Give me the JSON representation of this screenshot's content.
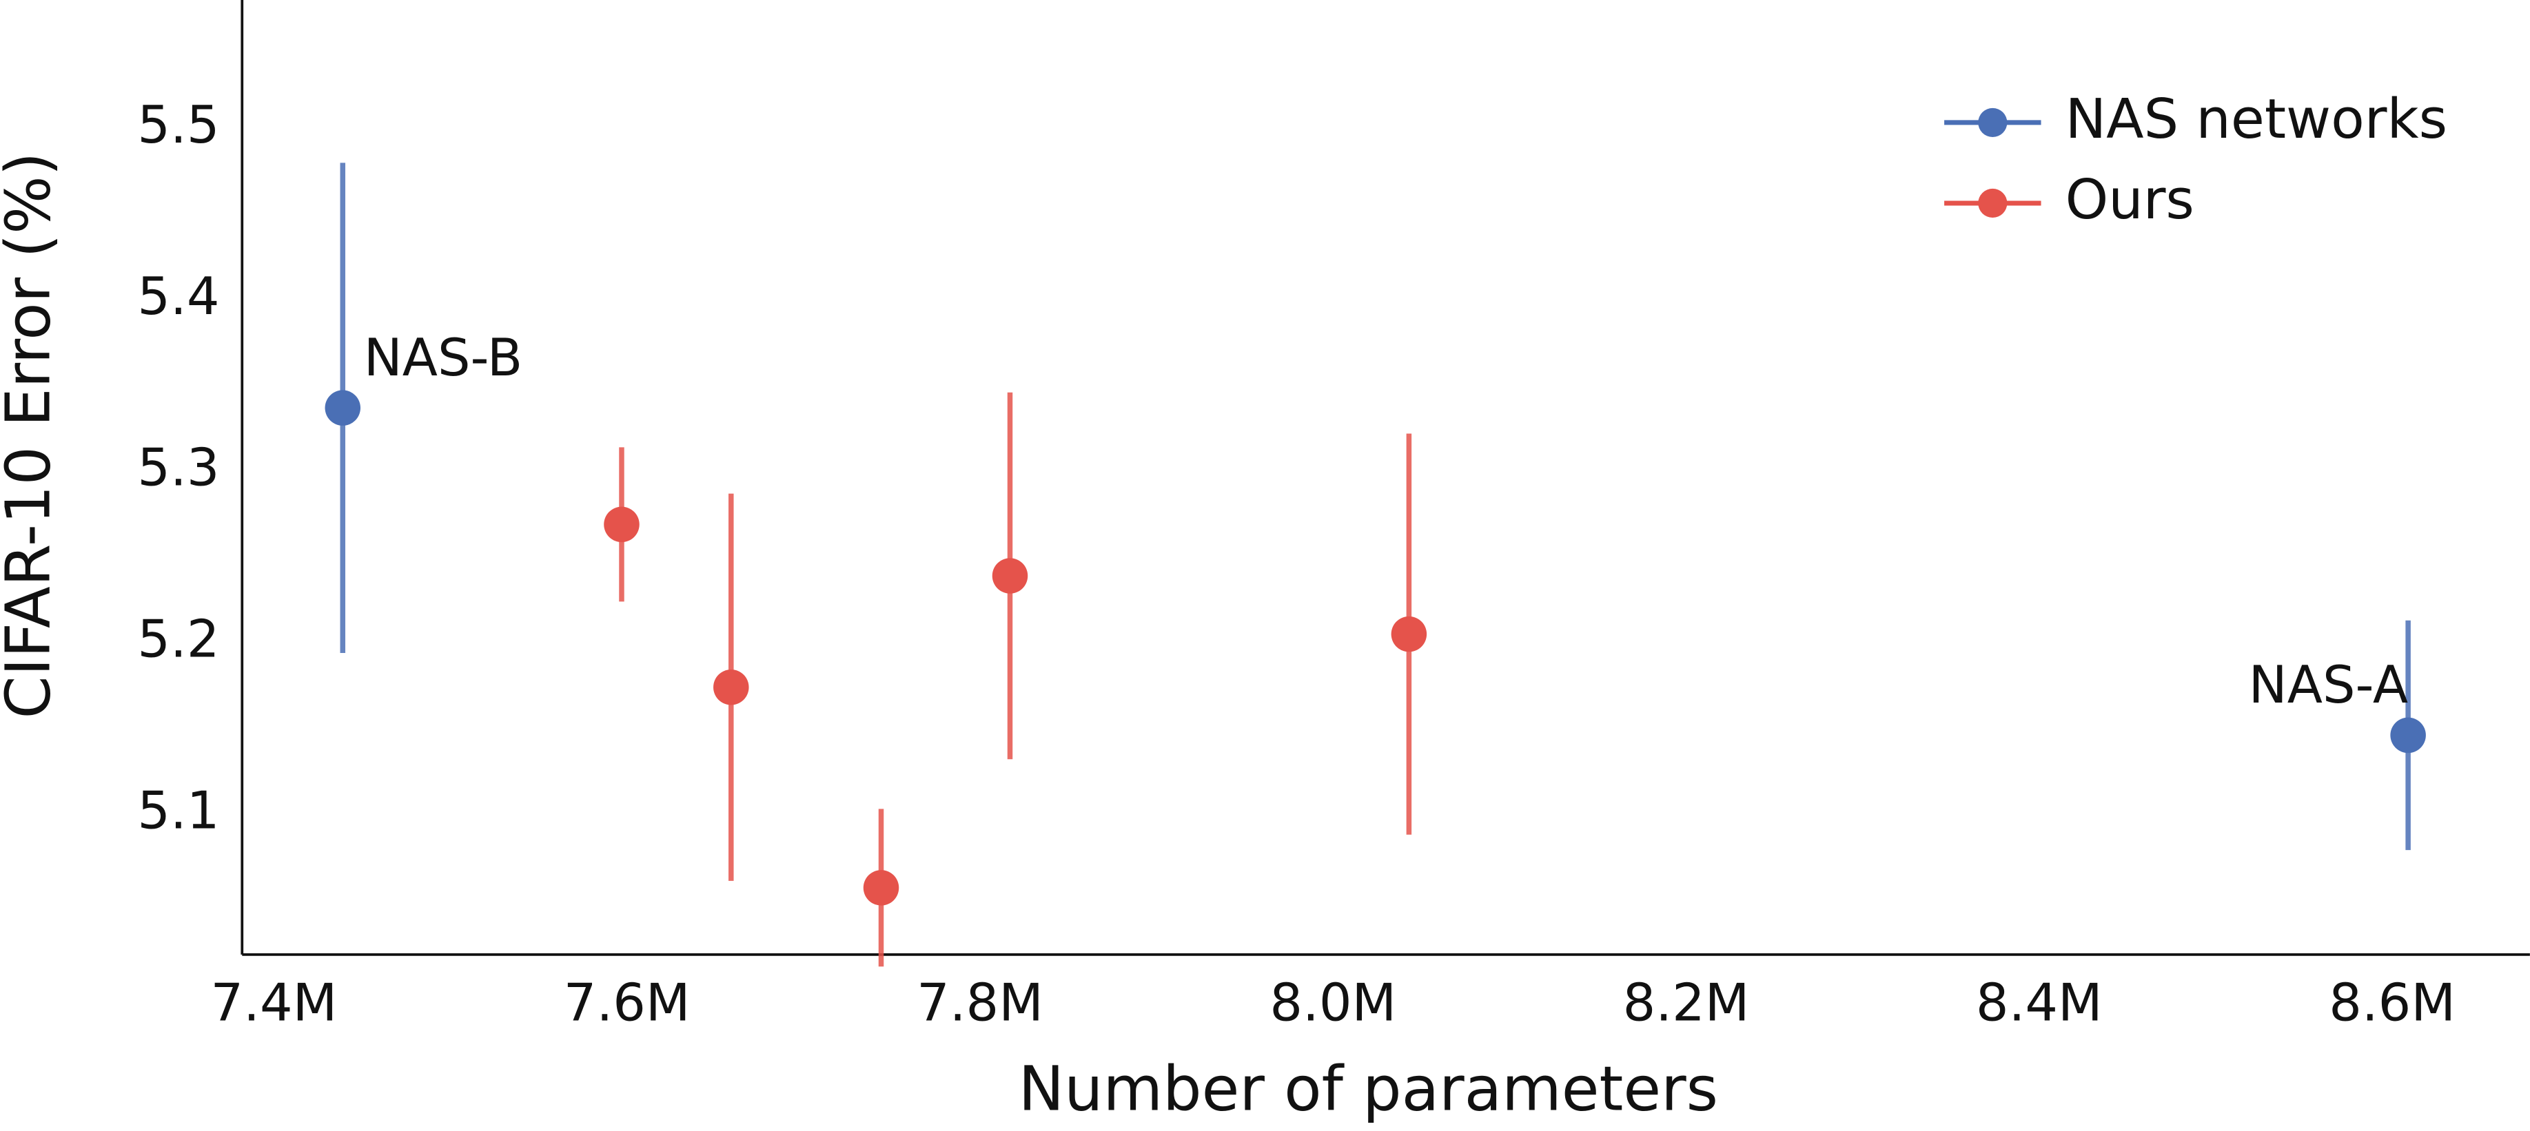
{
  "chart_data": {
    "type": "errorbar",
    "xlabel": "Number of parameters",
    "ylabel": "CIFAR-10 Error (%)",
    "xlim": [
      7.382,
      8.678
    ],
    "ylim": [
      5.018,
      5.575
    ],
    "xticks": [
      {
        "value": 7.4,
        "label": "7.4M"
      },
      {
        "value": 7.6,
        "label": "7.6M"
      },
      {
        "value": 7.8,
        "label": "7.8M"
      },
      {
        "value": 8.0,
        "label": "8.0M"
      },
      {
        "value": 8.2,
        "label": "8.2M"
      },
      {
        "value": 8.4,
        "label": "8.4M"
      },
      {
        "value": 8.6,
        "label": "8.6M"
      }
    ],
    "yticks": [
      5.1,
      5.2,
      5.3,
      5.4,
      5.5
    ],
    "grid": false,
    "legend": "upper right",
    "series": [
      {
        "name": "NAS networks",
        "color": "#4a6fb5",
        "x": [
          7.439,
          8.609
        ],
        "values": [
          5.337,
          5.146
        ],
        "errors": [
          0.143,
          0.067
        ],
        "labels": [
          "NAS-B",
          "NAS-A"
        ]
      },
      {
        "name": "Ours",
        "color": "#e5534b",
        "x": [
          7.597,
          7.659,
          7.744,
          7.817,
          8.043
        ],
        "values": [
          5.269,
          5.174,
          5.057,
          5.239,
          5.205
        ],
        "errors": [
          0.045,
          0.113,
          0.046,
          0.107,
          0.117
        ]
      }
    ]
  }
}
